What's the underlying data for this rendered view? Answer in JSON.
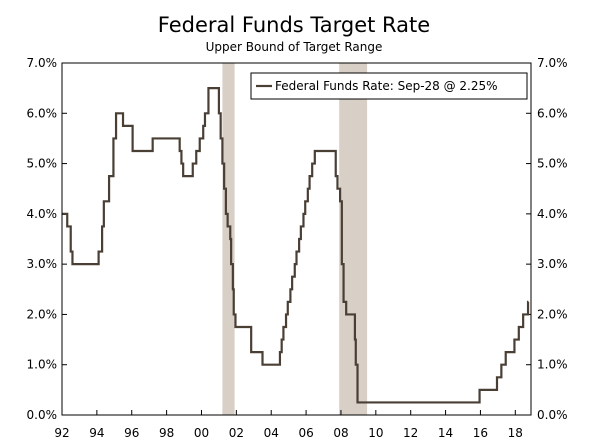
{
  "chart_data": {
    "type": "line",
    "title": "Federal Funds Target Rate",
    "subtitle": "Upper Bound of Target Range",
    "xlabel": "",
    "ylabel": "",
    "xlim": [
      1992,
      2018.9
    ],
    "ylim": [
      0,
      7
    ],
    "y_ticks": [
      {
        "value": 0,
        "label": "0.0%"
      },
      {
        "value": 1,
        "label": "1.0%"
      },
      {
        "value": 2,
        "label": "2.0%"
      },
      {
        "value": 3,
        "label": "3.0%"
      },
      {
        "value": 4,
        "label": "4.0%"
      },
      {
        "value": 5,
        "label": "5.0%"
      },
      {
        "value": 6,
        "label": "6.0%"
      },
      {
        "value": 7,
        "label": "7.0%"
      }
    ],
    "x_ticks": [
      {
        "value": 1992,
        "label": "92"
      },
      {
        "value": 1994,
        "label": "94"
      },
      {
        "value": 1996,
        "label": "96"
      },
      {
        "value": 1998,
        "label": "98"
      },
      {
        "value": 2000,
        "label": "00"
      },
      {
        "value": 2002,
        "label": "02"
      },
      {
        "value": 2004,
        "label": "04"
      },
      {
        "value": 2006,
        "label": "06"
      },
      {
        "value": 2008,
        "label": "08"
      },
      {
        "value": 2010,
        "label": "10"
      },
      {
        "value": 2012,
        "label": "12"
      },
      {
        "value": 2014,
        "label": "14"
      },
      {
        "value": 2016,
        "label": "16"
      },
      {
        "value": 2018,
        "label": "18"
      }
    ],
    "recessions": [
      {
        "start": 2001.2,
        "end": 2001.9
      },
      {
        "start": 2007.9,
        "end": 2009.5
      }
    ],
    "legend": {
      "position": "top-right",
      "label": "Federal Funds Rate: Sep-28 @ 2.25%"
    },
    "colors": {
      "line": "#4a3f35",
      "recession": "#d8cfc7",
      "axis": "#000000"
    },
    "series": [
      {
        "name": "Federal Funds Rate",
        "points": [
          [
            1992.0,
            4.0
          ],
          [
            1992.3,
            3.75
          ],
          [
            1992.5,
            3.25
          ],
          [
            1992.6,
            3.0
          ],
          [
            1994.1,
            3.25
          ],
          [
            1994.3,
            3.75
          ],
          [
            1994.4,
            4.25
          ],
          [
            1994.7,
            4.75
          ],
          [
            1994.95,
            5.5
          ],
          [
            1995.1,
            6.0
          ],
          [
            1995.5,
            5.75
          ],
          [
            1996.05,
            5.25
          ],
          [
            1997.2,
            5.5
          ],
          [
            1998.75,
            5.25
          ],
          [
            1998.85,
            5.0
          ],
          [
            1998.95,
            4.75
          ],
          [
            1999.5,
            5.0
          ],
          [
            1999.7,
            5.25
          ],
          [
            1999.9,
            5.5
          ],
          [
            2000.1,
            5.75
          ],
          [
            2000.2,
            6.0
          ],
          [
            2000.4,
            6.5
          ],
          [
            2001.0,
            6.0
          ],
          [
            2001.1,
            5.5
          ],
          [
            2001.2,
            5.0
          ],
          [
            2001.3,
            4.5
          ],
          [
            2001.4,
            4.0
          ],
          [
            2001.5,
            3.75
          ],
          [
            2001.65,
            3.5
          ],
          [
            2001.7,
            3.0
          ],
          [
            2001.8,
            2.5
          ],
          [
            2001.85,
            2.0
          ],
          [
            2001.95,
            1.75
          ],
          [
            2002.85,
            1.25
          ],
          [
            2003.5,
            1.0
          ],
          [
            2004.5,
            1.25
          ],
          [
            2004.6,
            1.5
          ],
          [
            2004.7,
            1.75
          ],
          [
            2004.85,
            2.0
          ],
          [
            2004.95,
            2.25
          ],
          [
            2005.1,
            2.5
          ],
          [
            2005.2,
            2.75
          ],
          [
            2005.35,
            3.0
          ],
          [
            2005.45,
            3.25
          ],
          [
            2005.6,
            3.5
          ],
          [
            2005.7,
            3.75
          ],
          [
            2005.85,
            4.0
          ],
          [
            2005.95,
            4.25
          ],
          [
            2006.1,
            4.5
          ],
          [
            2006.2,
            4.75
          ],
          [
            2006.35,
            5.0
          ],
          [
            2006.5,
            5.25
          ],
          [
            2007.7,
            4.75
          ],
          [
            2007.8,
            4.5
          ],
          [
            2007.95,
            4.25
          ],
          [
            2008.05,
            3.0
          ],
          [
            2008.15,
            2.25
          ],
          [
            2008.3,
            2.0
          ],
          [
            2008.8,
            1.5
          ],
          [
            2008.85,
            1.0
          ],
          [
            2008.95,
            0.25
          ],
          [
            2015.95,
            0.5
          ],
          [
            2016.95,
            0.75
          ],
          [
            2017.2,
            1.0
          ],
          [
            2017.45,
            1.25
          ],
          [
            2017.95,
            1.5
          ],
          [
            2018.2,
            1.75
          ],
          [
            2018.45,
            2.0
          ],
          [
            2018.73,
            2.25
          ],
          [
            2018.75,
            2.25
          ]
        ]
      }
    ]
  }
}
